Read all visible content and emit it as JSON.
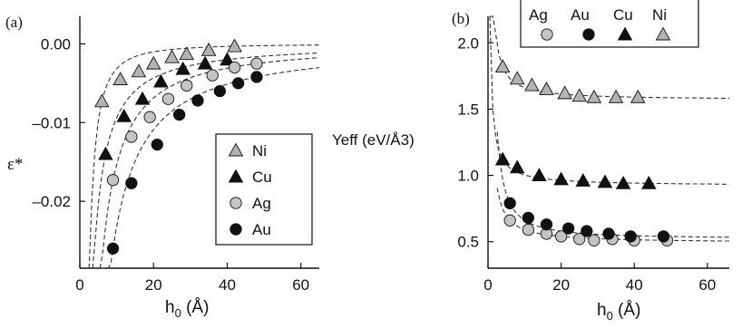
{
  "chart_data": [
    {
      "panel_label": "(a)",
      "type": "scatter",
      "xlabel_main": "h",
      "xlabel_sub": "0",
      "xlabel_unit": " (Å)",
      "ylabel": "ε*",
      "xlim": [
        0,
        65
      ],
      "ylim": [
        -0.0285,
        0.0035
      ],
      "xticks": [
        0,
        20,
        40,
        60
      ],
      "xtick_labels": [
        "0",
        "20",
        "40",
        "60"
      ],
      "yticks": [
        0.0,
        -0.01,
        -0.02
      ],
      "ytick_labels": [
        "0.00",
        "–0.01",
        "–0.02"
      ],
      "legend_position": "center-right",
      "legend_order": [
        "Ni",
        "Cu",
        "Ag",
        "Au"
      ],
      "series": [
        {
          "name": "Ni",
          "marker": "triangle",
          "color": "#b3b3b3",
          "x": [
            6,
            11,
            16,
            20,
            25,
            29,
            35,
            42
          ],
          "y": [
            -0.0073,
            -0.0045,
            -0.0035,
            -0.0025,
            -0.0017,
            -0.0013,
            -0.0008,
            -0.0003
          ]
        },
        {
          "name": "Cu",
          "marker": "triangle",
          "color": "#111111",
          "x": [
            7,
            12,
            17,
            22,
            28,
            34,
            40
          ],
          "y": [
            -0.014,
            -0.0092,
            -0.007,
            -0.0048,
            -0.0032,
            -0.0025,
            -0.002
          ]
        },
        {
          "name": "Ag",
          "marker": "circle",
          "color": "#c4c4c4",
          "x": [
            9,
            14,
            19,
            24,
            29,
            36,
            42,
            48
          ],
          "y": [
            -0.0173,
            -0.0118,
            -0.0093,
            -0.007,
            -0.0053,
            -0.004,
            -0.003,
            -0.0025
          ]
        },
        {
          "name": "Au",
          "marker": "circle",
          "color": "#111111",
          "x": [
            9,
            14,
            21,
            27,
            32,
            38,
            43,
            48
          ],
          "y": [
            -0.026,
            -0.0177,
            -0.0128,
            -0.009,
            -0.0072,
            -0.006,
            -0.005,
            -0.0042
          ]
        }
      ]
    },
    {
      "panel_label": "(b)",
      "type": "scatter",
      "xlabel_main": "h",
      "xlabel_sub": "0",
      "xlabel_unit": " (Å)",
      "ylabel": "Yeff (eV/Å3)",
      "xlim": [
        0,
        66
      ],
      "ylim": [
        0.3,
        2.2
      ],
      "xticks": [
        0,
        20,
        40,
        60
      ],
      "xtick_labels": [
        "0",
        "20",
        "40",
        "60"
      ],
      "yticks": [
        0.5,
        1.0,
        1.5,
        2.0
      ],
      "ytick_labels": [
        "0.5",
        "1.0",
        "1.5",
        "2.0"
      ],
      "legend_position": "top",
      "legend_order": [
        "Ag",
        "Au",
        "Cu",
        "Ni"
      ],
      "series": [
        {
          "name": "Ni",
          "marker": "triangle",
          "color": "#b3b3b3",
          "x": [
            4,
            8,
            12,
            16,
            21,
            25,
            29,
            35,
            41
          ],
          "y": [
            1.82,
            1.73,
            1.68,
            1.65,
            1.62,
            1.6,
            1.59,
            1.59,
            1.59
          ]
        },
        {
          "name": "Cu",
          "marker": "triangle",
          "color": "#111111",
          "x": [
            4,
            8,
            14,
            20,
            26,
            32,
            37,
            44
          ],
          "y": [
            1.12,
            1.06,
            1.0,
            0.97,
            0.96,
            0.95,
            0.94,
            0.94
          ]
        },
        {
          "name": "Ag",
          "marker": "circle",
          "color": "#c4c4c4",
          "x": [
            6,
            11,
            16,
            20,
            25,
            29,
            34,
            40,
            49
          ],
          "y": [
            0.66,
            0.59,
            0.56,
            0.54,
            0.52,
            0.51,
            0.52,
            0.51,
            0.51
          ]
        },
        {
          "name": "Au",
          "marker": "circle",
          "color": "#111111",
          "x": [
            6,
            11,
            16,
            22,
            27,
            33,
            39,
            48
          ],
          "y": [
            0.79,
            0.68,
            0.63,
            0.6,
            0.58,
            0.56,
            0.54,
            0.54
          ]
        }
      ]
    }
  ]
}
